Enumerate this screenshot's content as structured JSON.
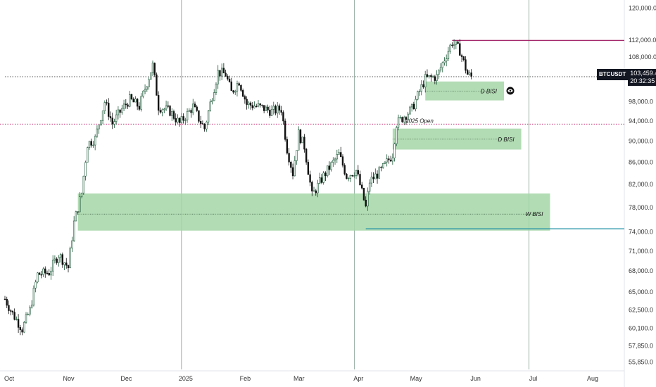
{
  "chart_data": {
    "type": "candlestick",
    "symbol": "BTCUSDT",
    "last_price": "103,459.4",
    "countdown": "20:32:35",
    "y_axis": {
      "scale": "log",
      "ticks": [
        "120,000.0",
        "112,000.0",
        "108,000.0",
        "98,000.0",
        "94,000.0",
        "90,000.0",
        "86,000.0",
        "82,000.0",
        "78,000.0",
        "74,000.0",
        "71,000.0",
        "68,000.0",
        "65,000.0",
        "62,500.0",
        "60,100.0",
        "57,850.0",
        "55,850.0"
      ],
      "tick_values": [
        120000,
        112000,
        108000,
        98000,
        94000,
        90000,
        86000,
        82000,
        78000,
        74000,
        71000,
        68000,
        65000,
        62500,
        60100,
        57850,
        55850
      ],
      "range": [
        55400,
        121000
      ]
    },
    "x_axis": {
      "labels": [
        "Oct",
        "Nov",
        "Dec",
        "2025",
        "Feb",
        "Mar",
        "Apr",
        "May",
        "Jun",
        "Jul",
        "Aug"
      ],
      "label_dates": [
        "2024-10-01",
        "2024-11-01",
        "2024-12-01",
        "2025-01-01",
        "2025-02-01",
        "2025-03-01",
        "2025-04-01",
        "2025-05-01",
        "2025-06-01",
        "2025-07-01",
        "2025-08-01"
      ],
      "range": [
        "2024-10-01",
        "2025-08-01"
      ]
    },
    "gridlines_x_dates": [
      "2025-01-01",
      "2025-04-01",
      "2025-07-01"
    ],
    "zones": [
      {
        "label": "W BISI",
        "from": "2024-11-08",
        "to": "2025-07-12",
        "low": 74200,
        "high": 80400,
        "mid": 76900
      },
      {
        "label": "D BISI",
        "from": "2025-04-21",
        "to": "2025-06-27",
        "low": 88400,
        "high": 92500,
        "mid": 90400
      },
      {
        "label": "D BISI",
        "from": "2025-05-08",
        "to": "2025-06-18",
        "low": 98300,
        "high": 102400,
        "mid": 100300
      }
    ],
    "lines": [
      {
        "label": "",
        "value": 111900,
        "from": "2025-05-22",
        "color": "#a3266b"
      },
      {
        "label": "2025 Open",
        "value": 93400,
        "from": "2024-01-01",
        "color": "#c0266b",
        "style": "dotted"
      },
      {
        "label": "",
        "value": 74500,
        "from": "2025-04-07",
        "color": "#1e8fa6"
      },
      {
        "label": "",
        "value": 103459,
        "from": "2024-10-01",
        "color": "#555555",
        "style": "dotted"
      }
    ],
    "price_path": [
      [
        "2024-10-01",
        64000
      ],
      [
        "2024-10-05",
        62000
      ],
      [
        "2024-10-10",
        60000
      ],
      [
        "2024-10-14",
        62500
      ],
      [
        "2024-10-18",
        67500
      ],
      [
        "2024-10-24",
        67800
      ],
      [
        "2024-10-29",
        70500
      ],
      [
        "2024-11-03",
        68500
      ],
      [
        "2024-11-06",
        75500
      ],
      [
        "2024-11-10",
        80500
      ],
      [
        "2024-11-13",
        89500
      ],
      [
        "2024-11-17",
        90500
      ],
      [
        "2024-11-22",
        98000
      ],
      [
        "2024-11-26",
        93500
      ],
      [
        "2024-12-01",
        96500
      ],
      [
        "2024-12-05",
        98500
      ],
      [
        "2024-12-10",
        97000
      ],
      [
        "2024-12-17",
        106000
      ],
      [
        "2024-12-20",
        97000
      ],
      [
        "2024-12-26",
        96000
      ],
      [
        "2024-12-31",
        93500
      ],
      [
        "2025-01-07",
        97000
      ],
      [
        "2025-01-10",
        94500
      ],
      [
        "2025-01-13",
        92500
      ],
      [
        "2025-01-20",
        104500
      ],
      [
        "2025-01-24",
        104000
      ],
      [
        "2025-01-27",
        100000
      ],
      [
        "2025-01-31",
        102500
      ],
      [
        "2025-02-04",
        97500
      ],
      [
        "2025-02-10",
        97000
      ],
      [
        "2025-02-17",
        96000
      ],
      [
        "2025-02-22",
        96500
      ],
      [
        "2025-02-25",
        88500
      ],
      [
        "2025-02-28",
        84000
      ],
      [
        "2025-03-03",
        91500
      ],
      [
        "2025-03-06",
        89000
      ],
      [
        "2025-03-10",
        80000
      ],
      [
        "2025-03-16",
        83500
      ],
      [
        "2025-03-24",
        87500
      ],
      [
        "2025-03-28",
        83500
      ],
      [
        "2025-04-02",
        84500
      ],
      [
        "2025-04-07",
        78000
      ],
      [
        "2025-04-09",
        82500
      ],
      [
        "2025-04-15",
        84500
      ],
      [
        "2025-04-21",
        87500
      ],
      [
        "2025-04-23",
        93500
      ],
      [
        "2025-05-01",
        96500
      ],
      [
        "2025-05-08",
        103000
      ],
      [
        "2025-05-14",
        103500
      ],
      [
        "2025-05-22",
        111500
      ],
      [
        "2025-05-26",
        109500
      ],
      [
        "2025-05-30",
        104000
      ],
      [
        "2025-06-01",
        103459
      ]
    ]
  }
}
